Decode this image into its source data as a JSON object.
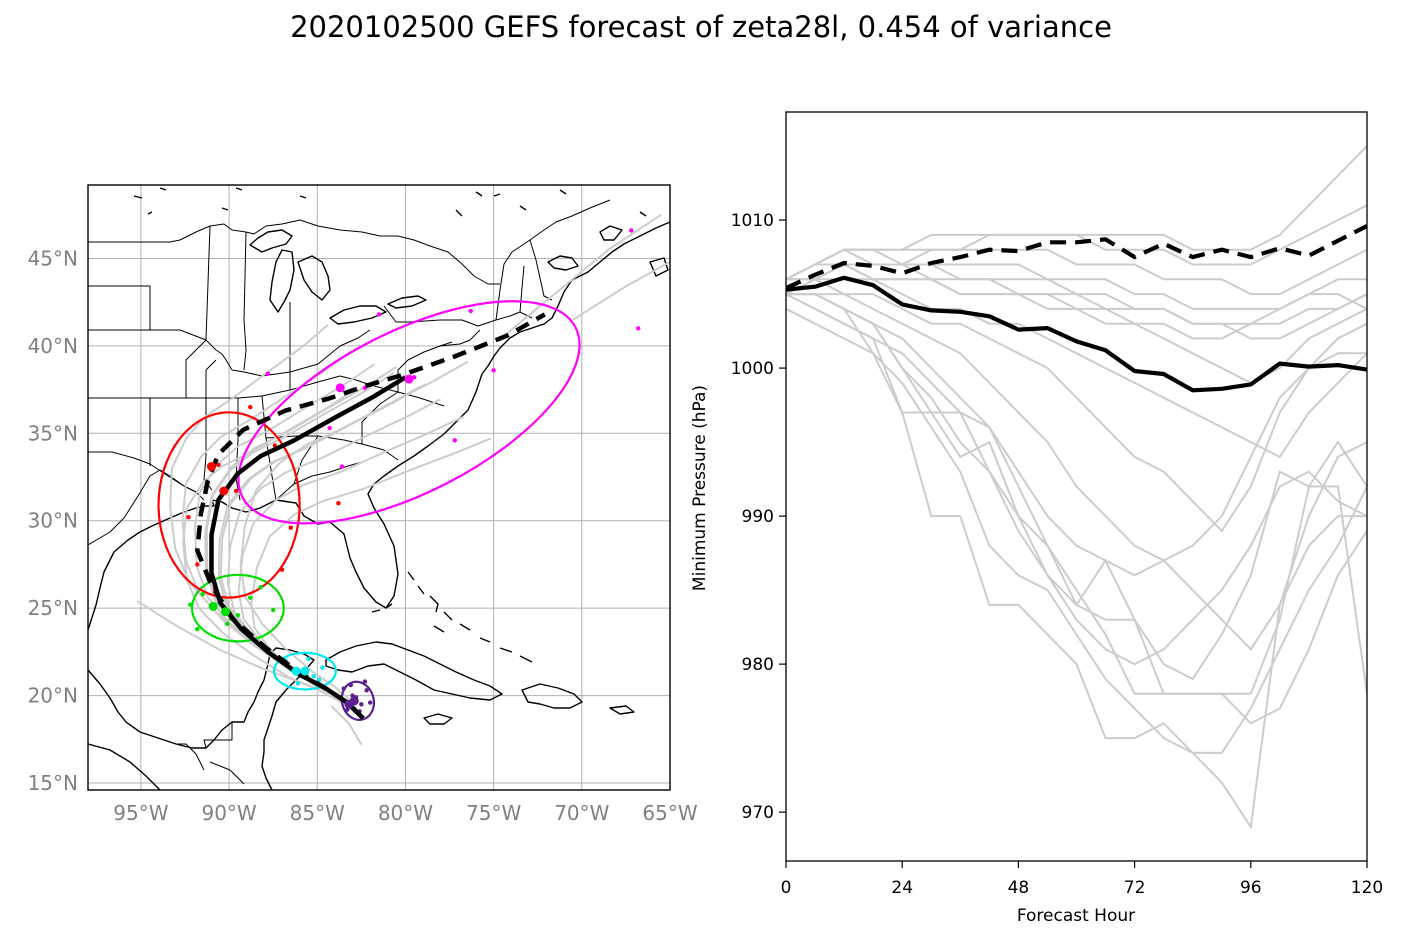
{
  "figure": {
    "title": "2020102500 GEFS forecast of zeta28l, 0.454 of variance"
  },
  "colors": {
    "members": "#cccccc",
    "mean": "#000000",
    "coast": "#000000",
    "grid": "#b0b0b0",
    "map_tick": "#808080",
    "ellipses": [
      "#5b1f8f",
      "#00e8f0",
      "#00dd00",
      "#ff0000",
      "#ff00ff"
    ]
  },
  "chart_data": [
    {
      "type": "map",
      "lon_range": [
        -98,
        -65
      ],
      "lat_range": [
        14.6,
        49.2
      ],
      "xticks": [
        -95,
        -90,
        -85,
        -80,
        -75,
        -70,
        -65
      ],
      "xtick_labels": [
        "95°W",
        "90°W",
        "85°W",
        "80°W",
        "75°W",
        "70°W",
        "65°W"
      ],
      "yticks": [
        15,
        20,
        25,
        30,
        35,
        40,
        45
      ],
      "ytick_labels": [
        "15°N",
        "20°N",
        "25°N",
        "30°N",
        "35°N",
        "40°N",
        "45°N"
      ],
      "grid": true,
      "series": [
        {
          "style": "solid-mean",
          "points": [
            [
              -82.4,
              18.7
            ],
            [
              -83.3,
              19.6
            ],
            [
              -84.5,
              20.4
            ],
            [
              -86.0,
              21.2
            ],
            [
              -87.8,
              22.5
            ],
            [
              -89.3,
              23.8
            ],
            [
              -90.5,
              25.3
            ],
            [
              -91.0,
              27.0
            ],
            [
              -91.0,
              29.2
            ],
            [
              -90.6,
              31.2
            ],
            [
              -89.5,
              32.7
            ],
            [
              -88.2,
              33.7
            ],
            [
              -86.3,
              34.6
            ],
            [
              -84.0,
              35.9
            ],
            [
              -81.8,
              37.1
            ],
            [
              -80.0,
              38.2
            ]
          ]
        },
        {
          "style": "dashed-mean",
          "points": [
            [
              -82.4,
              18.7
            ],
            [
              -83.3,
              19.6
            ],
            [
              -84.5,
              20.4
            ],
            [
              -86.0,
              21.3
            ],
            [
              -88.0,
              22.8
            ],
            [
              -89.8,
              24.4
            ],
            [
              -91.0,
              26.3
            ],
            [
              -91.8,
              28.3
            ],
            [
              -91.6,
              30.4
            ],
            [
              -91.2,
              32.3
            ],
            [
              -90.6,
              33.8
            ],
            [
              -89.2,
              35.2
            ],
            [
              -86.8,
              36.3
            ],
            [
              -84.3,
              37.0
            ],
            [
              -82.3,
              37.7
            ],
            [
              -80.3,
              38.3
            ],
            [
              -77.2,
              39.4
            ],
            [
              -74.2,
              40.6
            ],
            [
              -72.1,
              41.8
            ]
          ]
        }
      ],
      "ellipses": [
        {
          "center": [
            -82.7,
            19.7
          ],
          "semi_axes_deg": [
            0.9,
            1.1
          ],
          "angle": -15
        },
        {
          "center": [
            -85.7,
            21.4
          ],
          "semi_axes_deg": [
            1.75,
            1.05
          ],
          "angle": 0
        },
        {
          "center": [
            -89.5,
            25.0
          ],
          "semi_axes_deg": [
            2.6,
            1.9
          ],
          "angle": 0
        },
        {
          "center": [
            -90.0,
            30.9
          ],
          "semi_axes_deg": [
            4.0,
            5.3
          ],
          "angle": 0
        },
        {
          "center": [
            -79.8,
            36.2
          ],
          "semi_axes_deg": [
            10.6,
            4.6
          ],
          "angle": -27
        }
      ],
      "member_points": [
        {
          "color": 0,
          "points": [
            [
              -82.5,
              19.5
            ],
            [
              -83,
              20
            ],
            [
              -82.2,
              20.3
            ],
            [
              -83.3,
              19.2
            ],
            [
              -82.8,
              19.9
            ],
            [
              -82,
              19.6
            ],
            [
              -83.5,
              20.4
            ],
            [
              -82.6,
              19.1
            ],
            [
              -82.3,
              20.8
            ],
            [
              -83.1,
              20.6
            ]
          ]
        },
        {
          "color": 1,
          "points": [
            [
              -86.5,
              21.5
            ],
            [
              -85.2,
              21.1
            ],
            [
              -84.7,
              21.6
            ],
            [
              -86.1,
              20.7
            ],
            [
              -85.5,
              22.1
            ],
            [
              -86.8,
              22
            ],
            [
              -84.9,
              20.9
            ],
            [
              -85.8,
              21.3
            ]
          ]
        },
        {
          "color": 2,
          "points": [
            [
              -90.8,
              25.1
            ],
            [
              -89.5,
              24.6
            ],
            [
              -88.8,
              25.6
            ],
            [
              -91.5,
              25.8
            ],
            [
              -90.1,
              24.1
            ],
            [
              -89,
              23.7
            ],
            [
              -91.8,
              23.8
            ],
            [
              -88.2,
              26.2
            ],
            [
              -87.5,
              24.9
            ],
            [
              -89.9,
              24.4
            ],
            [
              -92.2,
              25.2
            ]
          ]
        },
        {
          "color": 3,
          "points": [
            [
              -90.6,
              33.2
            ],
            [
              -89.6,
              31.7
            ],
            [
              -92.3,
              30.2
            ],
            [
              -91.3,
              31.9
            ],
            [
              -88.8,
              36.5
            ],
            [
              -87,
              27.2
            ],
            [
              -86.5,
              29.6
            ],
            [
              -87.4,
              34.3
            ],
            [
              -83.8,
              31
            ],
            [
              -91.8,
              27.5
            ],
            [
              -90.8,
              26.1
            ]
          ]
        },
        {
          "color": 4,
          "points": [
            [
              -79.5,
              38.2
            ],
            [
              -82.3,
              37.6
            ],
            [
              -87.8,
              38.4
            ],
            [
              -84.3,
              35.3
            ],
            [
              -83.6,
              33.1
            ],
            [
              -75,
              38.6
            ],
            [
              -77.2,
              34.6
            ],
            [
              -67.2,
              46.6
            ],
            [
              -66.8,
              41
            ],
            [
              -81.5,
              41.8
            ],
            [
              -76.3,
              42
            ]
          ]
        }
      ]
    },
    {
      "type": "line",
      "title": "",
      "xlabel": "Forecast Hour",
      "ylabel": "Minimum Pressure (hPa)",
      "xlim": [
        0,
        120
      ],
      "ylim": [
        966.7,
        1017.3
      ],
      "xticks": [
        0,
        24,
        48,
        72,
        96,
        120
      ],
      "yticks": [
        970,
        980,
        990,
        1000,
        1010
      ],
      "x": [
        0,
        6,
        12,
        18,
        24,
        30,
        36,
        42,
        48,
        54,
        60,
        66,
        72,
        78,
        84,
        90,
        96,
        102,
        108,
        114,
        120
      ],
      "series": [
        {
          "style": "mean-solid",
          "values": [
            1005.3,
            1005.5,
            1006.1,
            1005.6,
            1004.3,
            1003.9,
            1003.8,
            1003.5,
            1002.6,
            1002.7,
            1001.8,
            1001.2,
            999.8,
            999.6,
            998.5,
            998.6,
            998.9,
            1000.3,
            1000.1,
            1000.2,
            999.9
          ]
        },
        {
          "style": "mean-dashed",
          "values": [
            1005.4,
            1006.3,
            1007.1,
            1006.9,
            1006.4,
            1007.1,
            1007.5,
            1008,
            1007.9,
            1008.5,
            1008.5,
            1008.7,
            1007.5,
            1008.4,
            1007.5,
            1008,
            1007.5,
            1008.1,
            1007.6,
            1008.6,
            1009.6
          ]
        },
        {
          "style": "member",
          "values": [
            1005,
            1005,
            1004,
            1001,
            997,
            990,
            990,
            984,
            984,
            982,
            980,
            975,
            975,
            976,
            974,
            972,
            969,
            984,
            988,
            990,
            990
          ]
        },
        {
          "style": "member",
          "values": [
            1005,
            1005,
            1004,
            1003,
            1000,
            997,
            994,
            995,
            990,
            988,
            984,
            987,
            983,
            978,
            978,
            978,
            976,
            977,
            981,
            986,
            989
          ]
        },
        {
          "style": "member",
          "values": [
            1005,
            1004,
            1003,
            1002,
            997,
            997,
            997,
            996,
            992,
            988,
            985,
            982,
            978,
            978,
            978,
            978,
            978,
            983,
            992,
            992,
            978
          ]
        },
        {
          "style": "member",
          "values": [
            1005,
            1005,
            1004,
            1003,
            1000,
            998,
            995,
            993,
            989,
            986,
            983,
            981,
            980,
            981,
            983,
            985,
            988,
            992,
            993,
            991,
            990
          ]
        },
        {
          "style": "member",
          "values": [
            1005,
            1005,
            1004,
            1003,
            1002,
            1000,
            998,
            996,
            993,
            990,
            988,
            987,
            986,
            987,
            988,
            990,
            994,
            998,
            1000,
            1001,
            1001
          ]
        },
        {
          "style": "member",
          "values": [
            1006,
            1006,
            1005,
            1005,
            1004,
            1003,
            1003,
            1002,
            1001,
            1000,
            998,
            996,
            994,
            993,
            991,
            989,
            992,
            997,
            1000,
            1002,
            1003
          ]
        },
        {
          "style": "member",
          "values": [
            1005,
            1006,
            1007,
            1006,
            1005,
            1004,
            1004,
            1003,
            1003,
            1002,
            1001,
            1000,
            999,
            998,
            997,
            996,
            995,
            994,
            997,
            999,
            1001
          ]
        },
        {
          "style": "member",
          "values": [
            1006,
            1006,
            1007,
            1006,
            1006,
            1006,
            1005,
            1005,
            1005,
            1004,
            1004,
            1003,
            1003,
            1002,
            1001,
            1000,
            999,
            1000,
            1002,
            1003,
            1004
          ]
        },
        {
          "style": "member",
          "values": [
            1006,
            1007,
            1007,
            1007,
            1007,
            1007,
            1006,
            1006,
            1006,
            1006,
            1005,
            1005,
            1004,
            1004,
            1003,
            1003,
            1002,
            1002,
            1003,
            1004,
            1005
          ]
        },
        {
          "style": "member",
          "values": [
            1006,
            1007,
            1008,
            1008,
            1007,
            1007,
            1007,
            1007,
            1007,
            1006,
            1006,
            1006,
            1005,
            1005,
            1004,
            1004,
            1004,
            1004,
            1005,
            1006,
            1006
          ]
        },
        {
          "style": "member",
          "values": [
            1006,
            1007,
            1008,
            1007,
            1007,
            1008,
            1008,
            1008,
            1008,
            1008,
            1007,
            1007,
            1007,
            1006,
            1006,
            1006,
            1005,
            1005,
            1006,
            1007,
            1008
          ]
        },
        {
          "style": "member",
          "values": [
            1006,
            1007,
            1008,
            1008,
            1008,
            1008,
            1008,
            1009,
            1009,
            1009,
            1009,
            1008,
            1008,
            1008,
            1007,
            1007,
            1007,
            1008,
            1009,
            1010,
            1011
          ]
        },
        {
          "style": "member",
          "values": [
            1006,
            1007,
            1008,
            1008,
            1008,
            1009,
            1009,
            1009,
            1009,
            1009,
            1009,
            1009,
            1009,
            1009,
            1008,
            1008,
            1008,
            1009,
            1011,
            1013,
            1015
          ]
        },
        {
          "style": "member",
          "values": [
            1005,
            1006,
            1007,
            1007,
            1007,
            1006,
            1006,
            1006,
            1005,
            1005,
            1004,
            1004,
            1003,
            1003,
            1002,
            1002,
            1003,
            1004,
            1005,
            1005,
            1004
          ]
        },
        {
          "style": "member",
          "values": [
            1006,
            1006,
            1006,
            1006,
            1006,
            1006,
            1005,
            1005,
            1005,
            1005,
            1005,
            1004,
            1004,
            1004,
            1003,
            1003,
            1003,
            1003,
            1004,
            1004,
            1005
          ]
        },
        {
          "style": "member",
          "values": [
            1004,
            1003,
            1002,
            1001,
            999,
            996,
            993,
            988,
            986,
            985,
            982,
            979,
            977,
            975,
            974,
            974,
            977,
            981,
            985,
            988,
            992
          ]
        },
        {
          "style": "member",
          "values": [
            1005,
            1004,
            1003,
            1002,
            1001,
            999,
            997,
            993,
            990,
            986,
            984,
            983,
            983,
            980,
            979,
            982,
            986,
            993,
            992,
            995,
            992
          ]
        },
        {
          "style": "member",
          "values": [
            1005,
            1005,
            1005,
            1004,
            1003,
            1002,
            1001,
            999,
            997,
            995,
            992,
            990,
            988,
            987,
            985,
            983,
            981,
            984,
            990,
            994,
            995
          ]
        }
      ]
    }
  ]
}
